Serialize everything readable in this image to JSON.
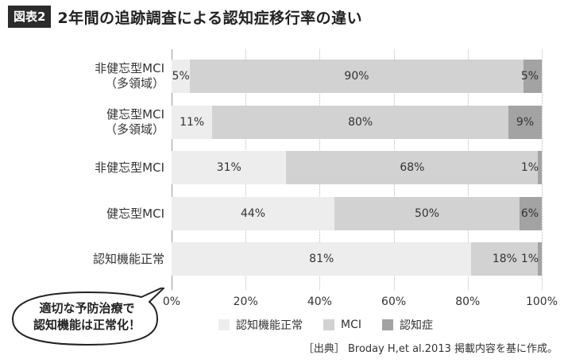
{
  "header": {
    "badge": "図表2",
    "title": "2年間の追跡調査による認知症移行率の違い"
  },
  "colors": {
    "normal": "#ededed",
    "mci": "#d2d2d2",
    "dementia": "#a3a3a3"
  },
  "chart_data": {
    "type": "bar",
    "orientation": "horizontal",
    "stacked": true,
    "categories": [
      [
        "非健忘型MCI",
        "（多領域）"
      ],
      [
        "健忘型MCI",
        "（多領域）"
      ],
      [
        "非健忘型MCI"
      ],
      [
        "健忘型MCI"
      ],
      [
        "認知機能正常"
      ]
    ],
    "series": [
      {
        "name": "認知機能正常",
        "values": [
          5,
          11,
          31,
          44,
          81
        ],
        "labels": [
          "5%",
          "11%",
          "31%",
          "44%",
          "81%"
        ]
      },
      {
        "name": "MCI",
        "values": [
          90,
          80,
          68,
          50,
          18
        ],
        "labels": [
          "90%",
          "80%",
          "68%",
          "50%",
          "18%"
        ]
      },
      {
        "name": "認知症",
        "values": [
          5,
          9,
          1,
          6,
          1
        ],
        "labels": [
          "5%",
          "9%",
          "1%",
          "6%",
          "1%"
        ]
      }
    ],
    "xlim": [
      0,
      100
    ],
    "xticks": [
      "0%",
      "20%",
      "40%",
      "60%",
      "80%",
      "100%"
    ],
    "legend_position": "bottom"
  },
  "bubble": {
    "line1": "適切な予防治療で",
    "line2": "認知機能は正常化！"
  },
  "source": "［出典］ Broday H,et al.2013 掲載内容を基に作成。"
}
